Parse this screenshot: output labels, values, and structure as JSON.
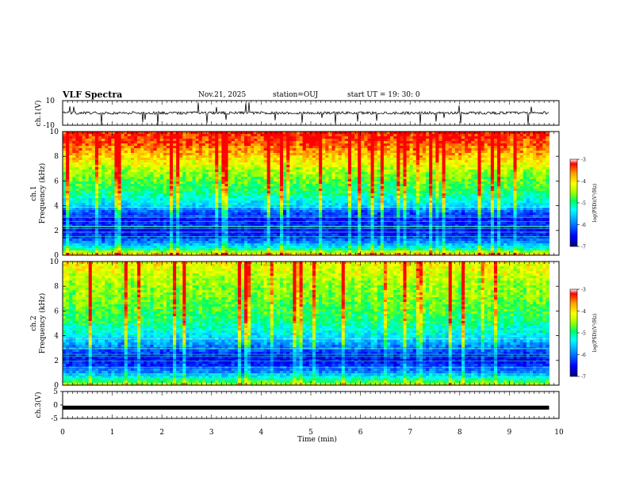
{
  "header": {
    "title": "VLF Spectra",
    "date": "Nov.21, 2025",
    "station": "station=OUJ",
    "start_ut": "start UT =  19: 30: 0"
  },
  "chart_data": [
    {
      "type": "line",
      "name": "ch1-waveform",
      "ylabel": "ch.1(V)",
      "ylim": [
        -10,
        10
      ],
      "yticks": [
        "10",
        "-10"
      ],
      "baseline": 0,
      "description_series": "noisy waveform near 0 V with sporadic spikes",
      "xlim": [
        0,
        10
      ]
    },
    {
      "type": "heatmap",
      "name": "ch1-spectrogram",
      "ylabel": "ch.1\nFrequency (kHz)",
      "ylabel_lines": [
        "ch.1",
        "Frequency (kHz)"
      ],
      "ylim": [
        0,
        10
      ],
      "yticks": [
        "0",
        "2",
        "4",
        "6",
        "8",
        "10"
      ],
      "xlim": [
        0,
        9.8
      ],
      "colorbar": {
        "label": "log(PSD)(V²/Hz)",
        "min": -7,
        "max": -3,
        "ticks": [
          "-3",
          "-4",
          "-5",
          "-6",
          "-7"
        ]
      },
      "profile_log_psd": [
        {
          "f": 0.0,
          "v": -3.6
        },
        {
          "f": 0.5,
          "v": -5.2
        },
        {
          "f": 1.0,
          "v": -5.8
        },
        {
          "f": 1.5,
          "v": -6.3
        },
        {
          "f": 2.0,
          "v": -6.5
        },
        {
          "f": 2.5,
          "v": -6.3
        },
        {
          "f": 3.0,
          "v": -6.5
        },
        {
          "f": 3.5,
          "v": -6.1
        },
        {
          "f": 4.0,
          "v": -5.5
        },
        {
          "f": 5.0,
          "v": -5.0
        },
        {
          "f": 6.0,
          "v": -4.7
        },
        {
          "f": 7.0,
          "v": -4.4
        },
        {
          "f": 8.0,
          "v": -3.9
        },
        {
          "f": 9.0,
          "v": -3.5
        },
        {
          "f": 10.0,
          "v": -3.3
        }
      ]
    },
    {
      "type": "heatmap",
      "name": "ch2-spectrogram",
      "ylabel": "ch.2\nFrequency (kHz)",
      "ylabel_lines": [
        "ch.2",
        "Frequency (kHz)"
      ],
      "ylim": [
        0,
        10
      ],
      "yticks": [
        "0",
        "2",
        "4",
        "6",
        "8",
        "10"
      ],
      "xlim": [
        0,
        9.8
      ],
      "colorbar": {
        "label": "log(PSD)(V²/Hz)",
        "min": -7,
        "max": -3,
        "ticks": [
          "-3",
          "-4",
          "-5",
          "-6",
          "-7"
        ]
      },
      "profile_log_psd": [
        {
          "f": 0.0,
          "v": -4.2
        },
        {
          "f": 0.5,
          "v": -5.2
        },
        {
          "f": 1.0,
          "v": -5.8
        },
        {
          "f": 1.5,
          "v": -6.2
        },
        {
          "f": 2.0,
          "v": -6.5
        },
        {
          "f": 2.5,
          "v": -6.3
        },
        {
          "f": 3.0,
          "v": -6.0
        },
        {
          "f": 3.5,
          "v": -5.7
        },
        {
          "f": 4.0,
          "v": -5.4
        },
        {
          "f": 5.0,
          "v": -5.0
        },
        {
          "f": 6.0,
          "v": -4.8
        },
        {
          "f": 7.0,
          "v": -4.6
        },
        {
          "f": 8.0,
          "v": -4.5
        },
        {
          "f": 9.0,
          "v": -4.3
        },
        {
          "f": 10.0,
          "v": -4.1
        }
      ]
    },
    {
      "type": "line",
      "name": "ch3-waveform",
      "ylabel": "ch.3(V)",
      "ylim": [
        -5,
        5
      ],
      "yticks": [
        "5",
        "0",
        "-5"
      ],
      "constant_value": -1,
      "xlim": [
        0,
        9.8
      ]
    }
  ],
  "x_axis": {
    "label": "Time (min)",
    "ticks": [
      "0",
      "1",
      "2",
      "3",
      "4",
      "5",
      "6",
      "7",
      "8",
      "9",
      "10"
    ],
    "range": [
      0,
      10
    ]
  },
  "colors": {
    "scale": [
      "#000080",
      "#0000ff",
      "#00a0ff",
      "#00ffff",
      "#00ff60",
      "#a0ff00",
      "#ffff00",
      "#ffa000",
      "#ff0000"
    ]
  }
}
